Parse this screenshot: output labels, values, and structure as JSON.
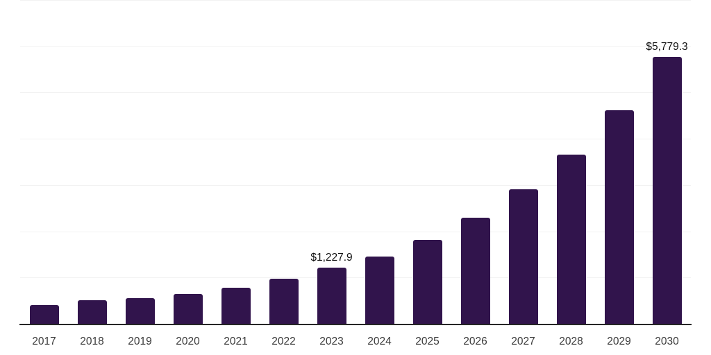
{
  "chart_data": {
    "type": "bar",
    "categories": [
      "2017",
      "2018",
      "2019",
      "2020",
      "2021",
      "2022",
      "2023",
      "2024",
      "2025",
      "2026",
      "2027",
      "2028",
      "2029",
      "2030"
    ],
    "values": [
      420,
      520,
      570,
      655,
      795,
      990,
      1227.9,
      1465,
      1825,
      2315,
      2925,
      3670,
      4625,
      5779.3
    ],
    "data_labels": [
      "",
      "",
      "",
      "",
      "",
      "",
      "$1,227.9",
      "",
      "",
      "",
      "",
      "",
      "",
      "$5,779.3"
    ],
    "title": "",
    "xlabel": "",
    "ylabel": "",
    "ylim": [
      0,
      7000
    ],
    "gridline_interval": 1000,
    "grid": "horizontal",
    "legend": "none",
    "y_tick_labels_visible": false,
    "colors": {
      "bar": "#31144C",
      "gridline": "#f2f2f2",
      "axis_line": "#262626",
      "data_label_text": "#111111",
      "x_tick_text": "#3a3a3a",
      "background": "#ffffff"
    }
  }
}
